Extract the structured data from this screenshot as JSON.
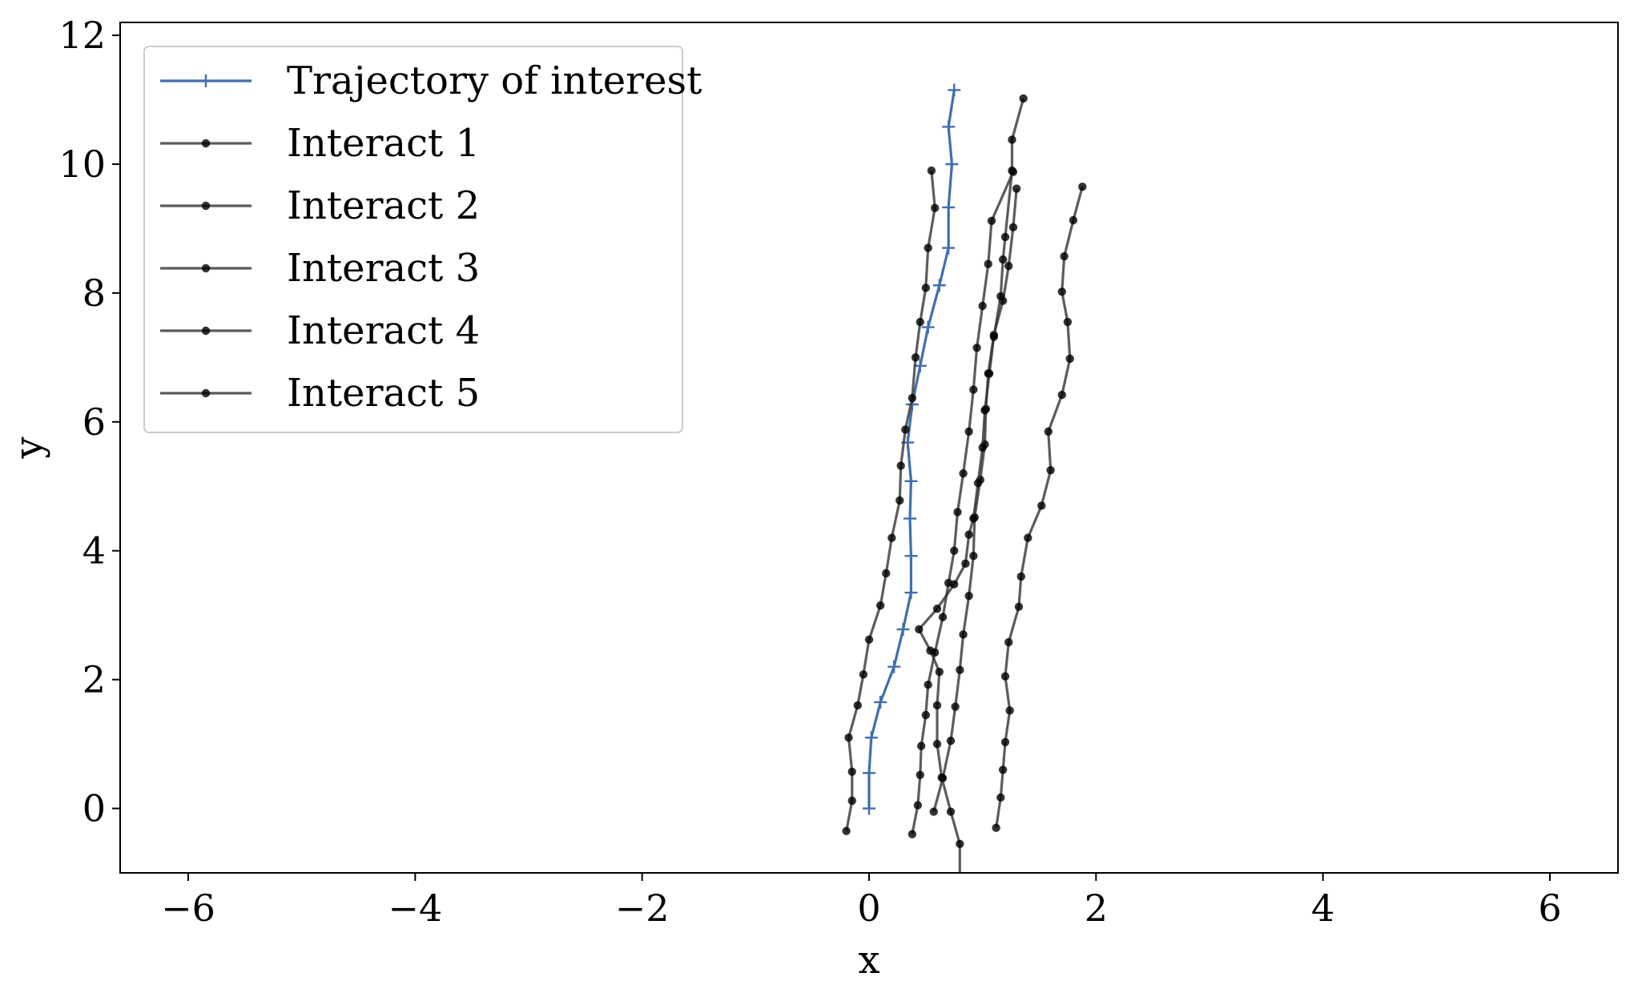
{
  "chart_data": {
    "type": "line",
    "xlabel": "x",
    "ylabel": "y",
    "xlim": [
      -6.6,
      6.6
    ],
    "ylim": [
      -1.0,
      12.2
    ],
    "xticks": [
      -6,
      -4,
      -2,
      0,
      2,
      4,
      6
    ],
    "yticks": [
      0,
      2,
      4,
      6,
      8,
      10,
      12
    ],
    "xtick_labels": [
      "−6",
      "−4",
      "−2",
      "0",
      "2",
      "4",
      "6"
    ],
    "ytick_labels": [
      "0",
      "2",
      "4",
      "6",
      "8",
      "10",
      "12"
    ],
    "grid": false,
    "legend_position": "top-left",
    "series": [
      {
        "name": "Trajectory of interest",
        "color": "#3f6fad",
        "marker": "plus",
        "points": [
          [
            0.0,
            0.0
          ],
          [
            0.0,
            0.55
          ],
          [
            0.02,
            1.1
          ],
          [
            0.1,
            1.65
          ],
          [
            0.22,
            2.2
          ],
          [
            0.3,
            2.78
          ],
          [
            0.37,
            3.35
          ],
          [
            0.37,
            3.92
          ],
          [
            0.36,
            4.5
          ],
          [
            0.37,
            5.08
          ],
          [
            0.34,
            5.68
          ],
          [
            0.38,
            6.27
          ],
          [
            0.45,
            6.87
          ],
          [
            0.52,
            7.47
          ],
          [
            0.62,
            8.12
          ],
          [
            0.7,
            8.7
          ],
          [
            0.7,
            9.33
          ],
          [
            0.73,
            10.0
          ],
          [
            0.7,
            10.58
          ],
          [
            0.75,
            11.15
          ]
        ]
      },
      {
        "name": "Interact 1",
        "color": "#333333",
        "marker": "dot",
        "points": [
          [
            -0.2,
            -0.35
          ],
          [
            -0.15,
            0.12
          ],
          [
            -0.15,
            0.57
          ],
          [
            -0.18,
            1.1
          ],
          [
            -0.1,
            1.6
          ],
          [
            -0.05,
            2.08
          ],
          [
            0.0,
            2.62
          ],
          [
            0.1,
            3.15
          ],
          [
            0.15,
            3.65
          ],
          [
            0.2,
            4.2
          ],
          [
            0.27,
            4.78
          ],
          [
            0.28,
            5.32
          ],
          [
            0.32,
            5.88
          ],
          [
            0.38,
            6.37
          ],
          [
            0.41,
            7.0
          ],
          [
            0.45,
            7.55
          ],
          [
            0.5,
            8.08
          ],
          [
            0.52,
            8.7
          ],
          [
            0.58,
            9.32
          ],
          [
            0.55,
            9.9
          ]
        ]
      },
      {
        "name": "Interact 2",
        "color": "#333333",
        "marker": "dot",
        "points": [
          [
            0.38,
            -0.4
          ],
          [
            0.43,
            0.05
          ],
          [
            0.45,
            0.52
          ],
          [
            0.46,
            0.97
          ],
          [
            0.5,
            1.45
          ],
          [
            0.52,
            1.92
          ],
          [
            0.58,
            2.42
          ],
          [
            0.65,
            2.97
          ],
          [
            0.7,
            3.5
          ],
          [
            0.75,
            4.0
          ],
          [
            0.78,
            4.6
          ],
          [
            0.83,
            5.2
          ],
          [
            0.88,
            5.85
          ],
          [
            0.92,
            6.5
          ],
          [
            0.95,
            7.15
          ],
          [
            1.0,
            7.8
          ],
          [
            1.05,
            8.45
          ],
          [
            1.08,
            9.12
          ],
          [
            1.27,
            9.88
          ]
        ]
      },
      {
        "name": "Interact 3",
        "color": "#333333",
        "marker": "dot",
        "points": [
          [
            0.57,
            -0.05
          ],
          [
            0.65,
            0.47
          ],
          [
            0.72,
            1.05
          ],
          [
            0.76,
            1.58
          ],
          [
            0.8,
            2.15
          ],
          [
            0.83,
            2.7
          ],
          [
            0.88,
            3.3
          ],
          [
            0.92,
            3.92
          ],
          [
            0.93,
            4.52
          ],
          [
            0.98,
            5.1
          ],
          [
            1.02,
            5.65
          ],
          [
            1.03,
            6.2
          ],
          [
            1.05,
            6.75
          ],
          [
            1.1,
            7.35
          ],
          [
            1.18,
            7.88
          ],
          [
            1.23,
            8.42
          ],
          [
            1.27,
            9.02
          ],
          [
            1.3,
            9.62
          ]
        ]
      },
      {
        "name": "Interact 4",
        "color": "#333333",
        "marker": "dot",
        "points": [
          [
            1.12,
            -0.3
          ],
          [
            1.16,
            0.17
          ],
          [
            1.18,
            0.6
          ],
          [
            1.2,
            1.03
          ],
          [
            1.24,
            1.52
          ],
          [
            1.2,
            2.05
          ],
          [
            1.23,
            2.58
          ],
          [
            1.32,
            3.13
          ],
          [
            1.34,
            3.6
          ],
          [
            1.4,
            4.2
          ],
          [
            1.52,
            4.7
          ],
          [
            1.6,
            5.25
          ],
          [
            1.58,
            5.85
          ],
          [
            1.7,
            6.42
          ],
          [
            1.77,
            6.98
          ],
          [
            1.75,
            7.55
          ],
          [
            1.7,
            8.02
          ],
          [
            1.72,
            8.57
          ],
          [
            1.8,
            9.13
          ],
          [
            1.88,
            9.65
          ]
        ]
      },
      {
        "name": "Interact 5",
        "color": "#333333",
        "marker": "dot",
        "points": [
          [
            0.8,
            -1.2
          ],
          [
            0.8,
            -0.55
          ],
          [
            0.72,
            -0.05
          ],
          [
            0.64,
            0.48
          ],
          [
            0.6,
            1.0
          ],
          [
            0.6,
            1.6
          ],
          [
            0.62,
            2.12
          ],
          [
            0.54,
            2.45
          ],
          [
            0.44,
            2.78
          ],
          [
            0.6,
            3.1
          ],
          [
            0.75,
            3.48
          ],
          [
            0.85,
            3.8
          ],
          [
            0.88,
            4.25
          ],
          [
            0.92,
            4.5
          ],
          [
            0.96,
            5.05
          ],
          [
            1.0,
            5.6
          ],
          [
            1.02,
            6.18
          ],
          [
            1.06,
            6.75
          ],
          [
            1.1,
            7.32
          ],
          [
            1.16,
            7.95
          ],
          [
            1.18,
            8.52
          ],
          [
            1.2,
            8.87
          ],
          [
            1.26,
            9.9
          ],
          [
            1.26,
            10.38
          ],
          [
            1.36,
            11.02
          ]
        ]
      }
    ]
  }
}
